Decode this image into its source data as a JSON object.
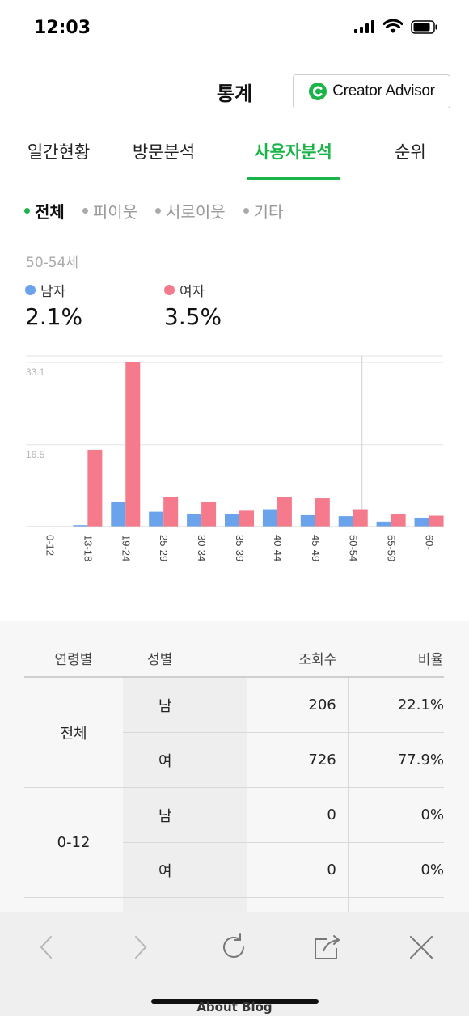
{
  "status_bar": {
    "time": "12:03"
  },
  "header": {
    "title": "통계",
    "creator_advisor_label": "Creator Advisor"
  },
  "tabs": [
    {
      "label": "일간현황",
      "active": false
    },
    {
      "label": "방문분석",
      "active": false
    },
    {
      "label": "사용자분석",
      "active": true
    },
    {
      "label": "순위",
      "active": false
    }
  ],
  "filters": [
    {
      "label": "전체",
      "active": true
    },
    {
      "label": "피이웃",
      "active": false
    },
    {
      "label": "서로이웃",
      "active": false
    },
    {
      "label": "기타",
      "active": false
    }
  ],
  "summary": {
    "selected_age": "50-54세",
    "male_label": "남자",
    "male_pct": "2.1%",
    "female_label": "여자",
    "female_pct": "3.5%"
  },
  "colors": {
    "male": "#6aa3ec",
    "female": "#f47a8c",
    "accent": "#1ab44a"
  },
  "chart_data": {
    "type": "bar",
    "categories": [
      "0-12",
      "13-18",
      "19-24",
      "25-29",
      "30-34",
      "35-39",
      "40-44",
      "45-49",
      "50-54",
      "55-59",
      "60-"
    ],
    "series": [
      {
        "name": "남자",
        "values": [
          0,
          0.3,
          5.0,
          3.0,
          2.5,
          2.5,
          3.5,
          2.3,
          2.1,
          1.0,
          1.8
        ]
      },
      {
        "name": "여자",
        "values": [
          0,
          15.5,
          33.1,
          6.0,
          5.0,
          3.2,
          6.0,
          5.7,
          3.5,
          2.6,
          2.2
        ]
      }
    ],
    "y_ticks": [
      "33.1",
      "16.5"
    ],
    "ylim": [
      0,
      33.1
    ],
    "grid": true,
    "highlight_category": "50-54"
  },
  "table": {
    "headers": {
      "age": "연령별",
      "sex": "성별",
      "views": "조회수",
      "ratio": "비율"
    },
    "groups": [
      {
        "age": "전체",
        "rows": [
          {
            "sex": "남",
            "views": "206",
            "ratio": "22.1%"
          },
          {
            "sex": "여",
            "views": "726",
            "ratio": "77.9%"
          }
        ]
      },
      {
        "age": "0-12",
        "rows": [
          {
            "sex": "남",
            "views": "0",
            "ratio": "0%"
          },
          {
            "sex": "여",
            "views": "0",
            "ratio": "0%"
          }
        ]
      }
    ]
  },
  "bottom_text": "About Blog"
}
